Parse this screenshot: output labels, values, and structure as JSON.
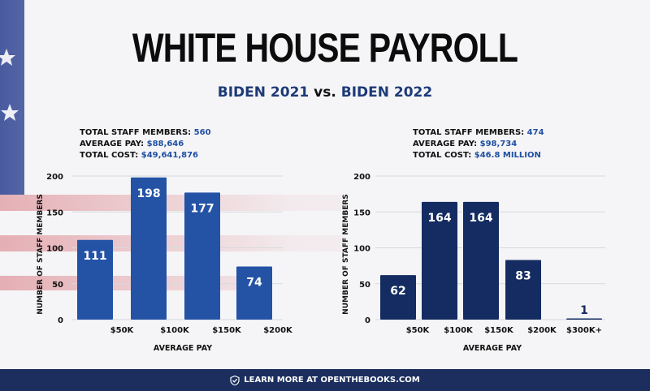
{
  "title": "WHITE HOUSE PAYROLL",
  "subtitle": {
    "left": "BIDEN 2021",
    "vs": "vs.",
    "right": "BIDEN 2022"
  },
  "stats_2021": {
    "staff_label": "TOTAL STAFF MEMBERS:",
    "staff_value": "560",
    "pay_label": "AVERAGE PAY:",
    "pay_value": "$88,646",
    "cost_label": "TOTAL COST:",
    "cost_value": "$49,641,876"
  },
  "stats_2022": {
    "staff_label": "TOTAL STAFF MEMBERS:",
    "staff_value": "474",
    "pay_label": "AVERAGE PAY:",
    "pay_value": "$98,734",
    "cost_label": "TOTAL COST:",
    "cost_value": "$46.8 MILLION"
  },
  "footer": {
    "text": "LEARN MORE AT OPENTHEBOOKS.COM"
  },
  "colors": {
    "bar_2021": "#2453a6",
    "bar_2022": "#142c61",
    "footer_bg": "#1b2e5e",
    "accent": "#1f4fa3"
  },
  "chart_data": [
    {
      "type": "bar",
      "title": "",
      "xlabel": "AVERAGE PAY",
      "ylabel": "NUMBER OF STAFF MEMBERS",
      "ylim": [
        0,
        200
      ],
      "yticks": [
        "0",
        "50",
        "100",
        "150",
        "200"
      ],
      "xticks": [
        "$50K",
        "$100K",
        "$150K",
        "$200K"
      ],
      "values": [
        111,
        198,
        177,
        74
      ],
      "grid": true
    },
    {
      "type": "bar",
      "title": "",
      "xlabel": "AVERAGE PAY",
      "ylabel": "NUMBER OF STAFF MEMBERS",
      "ylim": [
        0,
        200
      ],
      "yticks": [
        "0",
        "50",
        "100",
        "150",
        "200"
      ],
      "xticks": [
        "$50K",
        "$100K",
        "$150K",
        "$200K",
        "$300K+"
      ],
      "values": [
        62,
        164,
        164,
        83,
        1
      ],
      "grid": true
    }
  ]
}
